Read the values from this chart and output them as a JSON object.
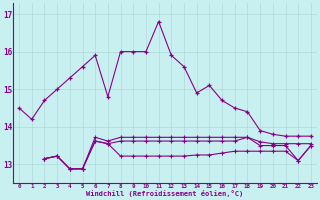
{
  "xlabel": "Windchill (Refroidissement éolien,°C)",
  "bg_color": "#c8f0f0",
  "grid_color": "#b0d8d8",
  "line_color": "#880088",
  "xlim": [
    -0.5,
    23.5
  ],
  "ylim": [
    12.5,
    17.3
  ],
  "yticks": [
    13,
    14,
    15,
    16,
    17
  ],
  "xticks": [
    0,
    1,
    2,
    3,
    4,
    5,
    6,
    7,
    8,
    9,
    10,
    11,
    12,
    13,
    14,
    15,
    16,
    17,
    18,
    19,
    20,
    21,
    22,
    23
  ],
  "series1_x": [
    0,
    1,
    2,
    3,
    4,
    5,
    6,
    7,
    8,
    9,
    10,
    11,
    12,
    13,
    14,
    15,
    16,
    17,
    18,
    19,
    20,
    21,
    22,
    23
  ],
  "series1_y": [
    14.5,
    14.2,
    14.7,
    15.0,
    15.3,
    15.6,
    15.9,
    14.8,
    16.0,
    16.0,
    16.0,
    16.8,
    15.9,
    15.6,
    14.9,
    15.1,
    14.7,
    14.5,
    14.4,
    13.9,
    13.8,
    13.75,
    13.75,
    13.75
  ],
  "series2_x": [
    2,
    3,
    4,
    5,
    6,
    7,
    8,
    9,
    10,
    11,
    12,
    13,
    14,
    15,
    16,
    17,
    18,
    19,
    20,
    21,
    22,
    23
  ],
  "series2_y": [
    13.15,
    13.22,
    12.88,
    12.88,
    13.72,
    13.62,
    13.72,
    13.72,
    13.72,
    13.72,
    13.72,
    13.72,
    13.72,
    13.72,
    13.72,
    13.72,
    13.72,
    13.6,
    13.55,
    13.55,
    13.55,
    13.55
  ],
  "series3_x": [
    2,
    3,
    4,
    5,
    6,
    7,
    8,
    9,
    10,
    11,
    12,
    13,
    14,
    15,
    16,
    17,
    18,
    19,
    20,
    21,
    22,
    23
  ],
  "series3_y": [
    13.15,
    13.22,
    12.88,
    12.88,
    13.62,
    13.55,
    13.22,
    13.22,
    13.22,
    13.22,
    13.22,
    13.22,
    13.25,
    13.25,
    13.3,
    13.35,
    13.35,
    13.35,
    13.35,
    13.35,
    13.1,
    13.5
  ],
  "series4_x": [
    2,
    3,
    4,
    5,
    6,
    7,
    8,
    9,
    10,
    11,
    12,
    13,
    14,
    15,
    16,
    17,
    18,
    19,
    20,
    21,
    22,
    23
  ],
  "series4_y": [
    13.15,
    13.22,
    12.88,
    12.88,
    13.62,
    13.55,
    13.62,
    13.62,
    13.62,
    13.62,
    13.62,
    13.62,
    13.62,
    13.62,
    13.62,
    13.62,
    13.72,
    13.5,
    13.5,
    13.5,
    13.1,
    13.5
  ],
  "figsize": [
    3.2,
    2.0
  ],
  "dpi": 100
}
